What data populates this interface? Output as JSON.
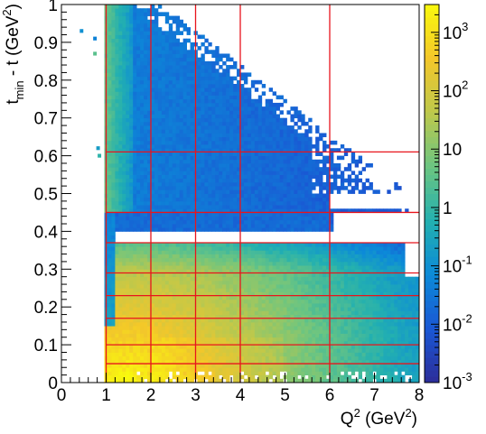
{
  "chart_data": {
    "type": "heatmap",
    "xlabel": "Q",
    "xlabel_sup": "2",
    "xlabel_unit": "(GeV",
    "xlabel_unit_sup": "2",
    "xlabel_unit_close": ")",
    "ylabel": "t",
    "ylabel_sub": "min",
    "ylabel_mid": "- t (GeV",
    "ylabel_sup": "2",
    "ylabel_close": ")",
    "xlim": [
      0,
      8
    ],
    "ylim": [
      0,
      1
    ],
    "x_ticks": [
      "0",
      "1",
      "2",
      "3",
      "4",
      "5",
      "6",
      "7",
      "8"
    ],
    "y_ticks": [
      "0",
      "0.1",
      "0.2",
      "0.3",
      "0.4",
      "0.5",
      "0.6",
      "0.7",
      "0.8",
      "0.9",
      "1"
    ],
    "colorbar": {
      "scale": "log",
      "range": [
        0.001,
        3000
      ],
      "labels": [
        {
          "value": 0.001,
          "base": "10",
          "exp": "-3"
        },
        {
          "value": 0.01,
          "base": "10",
          "exp": "-2"
        },
        {
          "value": 0.1,
          "base": "10",
          "exp": "-1"
        },
        {
          "value": 1,
          "base": "1",
          "exp": ""
        },
        {
          "value": 10,
          "base": "10",
          "exp": ""
        },
        {
          "value": 100,
          "base": "10",
          "exp": "2"
        },
        {
          "value": 1000,
          "base": "10",
          "exp": "3"
        }
      ]
    },
    "grid_lines_color": "#e8141c",
    "bin_x_edges": [
      1,
      2,
      3,
      4,
      6
    ],
    "bin_y_edges": [
      0.05,
      0.1,
      0.17,
      0.23,
      0.29,
      0.37,
      0.45,
      0.61
    ],
    "outlier_points": [
      {
        "x": 0.45,
        "y": 0.93,
        "value": 0.1
      },
      {
        "x": 0.75,
        "y": 0.91,
        "value": 0.05
      },
      {
        "x": 0.75,
        "y": 0.87,
        "value": 3
      },
      {
        "x": 0.82,
        "y": 0.62,
        "value": 0.2
      },
      {
        "x": 0.85,
        "y": 0.6,
        "value": 0.8
      }
    ],
    "colors": [
      "#2c2c99",
      "#1a57d4",
      "#0c8ad8",
      "#23b0b0",
      "#6cc581",
      "#bdc84c",
      "#f3c72a",
      "#f9f90e"
    ]
  }
}
